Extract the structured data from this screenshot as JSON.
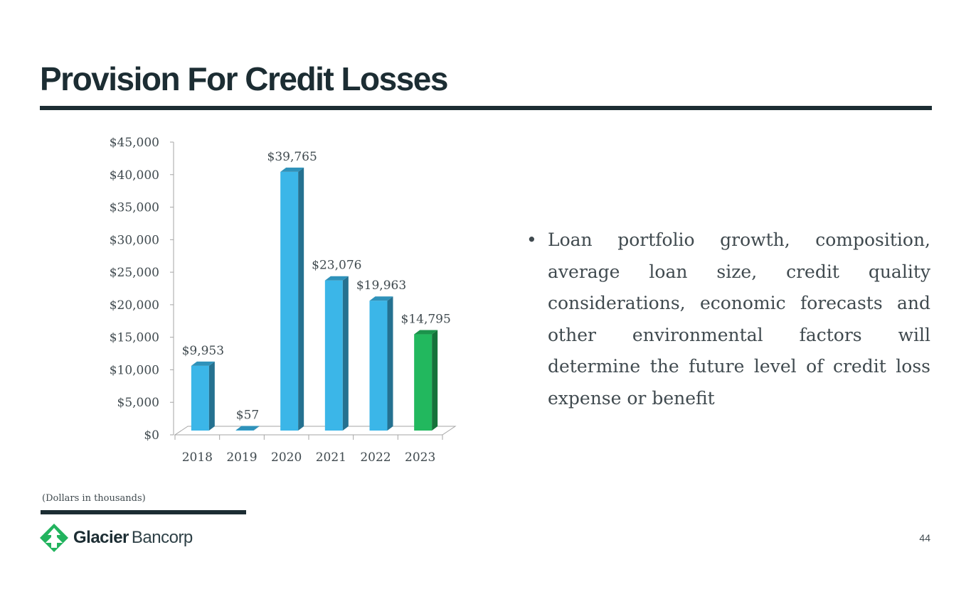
{
  "slide": {
    "title": "Provision For Credit Losses",
    "bullet_marker": "•",
    "bullet_text": "Loan portfolio growth, composition, average loan size, credit quality considerations, economic forecasts and other environmental factors will determine the future level of credit loss expense or benefit",
    "footnote": "(Dollars in thousands)",
    "page_number": "44"
  },
  "logo": {
    "word_bold": "Glacier",
    "word_light": "Bancorp",
    "icon": "glacier-tree-icon",
    "color": "#22b35e"
  },
  "colors": {
    "title": "#1c2d33",
    "bar": "#3bb6e8",
    "bar_highlight": "#22b85e",
    "text": "#404a4f"
  },
  "chart_data": {
    "type": "bar",
    "categories": [
      "2018",
      "2019",
      "2020",
      "2021",
      "2022",
      "2023"
    ],
    "values": [
      9953,
      57,
      39765,
      23076,
      19963,
      14795
    ],
    "data_labels": [
      "$9,953",
      "$57",
      "$39,765",
      "$23,076",
      "$19,963",
      "$14,795"
    ],
    "highlight_index": 5,
    "ylim": [
      0,
      45000
    ],
    "yticks": [
      0,
      5000,
      10000,
      15000,
      20000,
      25000,
      30000,
      35000,
      40000,
      45000
    ],
    "ytick_labels": [
      "$0",
      "$5,000",
      "$10,000",
      "$15,000",
      "$20,000",
      "$25,000",
      "$30,000",
      "$35,000",
      "$40,000",
      "$45,000"
    ],
    "grid": false,
    "style": "3d-column"
  }
}
